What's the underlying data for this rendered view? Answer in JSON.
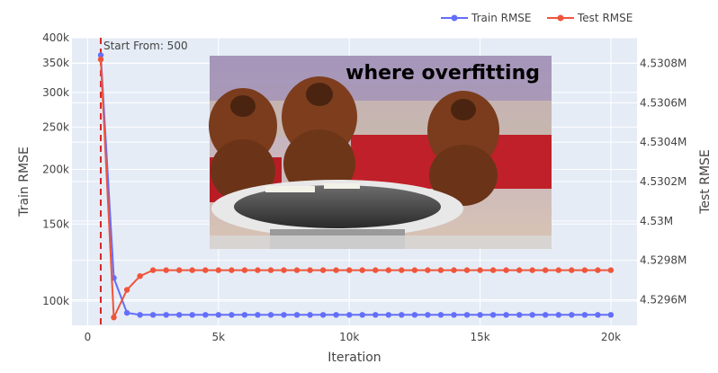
{
  "chart_data": {
    "type": "line",
    "xlabel": "Iteration",
    "ylabel": "Train RMSE",
    "y2label": "Test RMSE",
    "xlim": [
      -600,
      21000
    ],
    "ylim": [
      88000,
      400000
    ],
    "yscale": "log",
    "y2lim": [
      4.52947,
      4.53093
    ],
    "x_ticks": [
      0,
      5000,
      10000,
      15000,
      20000
    ],
    "x_tick_labels": [
      "0",
      "5k",
      "10k",
      "15k",
      "20k"
    ],
    "y_ticks": [
      100000,
      150000,
      200000,
      250000,
      300000,
      350000,
      400000
    ],
    "y_tick_labels": [
      "100k",
      "150k",
      "200k",
      "250k",
      "300k",
      "350k",
      "400k"
    ],
    "y2_ticks": [
      4.5296,
      4.5298,
      4.53,
      4.5302,
      4.5304,
      4.5306,
      4.5308
    ],
    "y2_tick_labels": [
      "4.5296M",
      "4.5298M",
      "4.53M",
      "4.5302M",
      "4.5304M",
      "4.5306M",
      "4.5308M"
    ],
    "x": [
      500,
      1000,
      1500,
      2000,
      2500,
      3000,
      3500,
      4000,
      4500,
      5000,
      5500,
      6000,
      6500,
      7000,
      7500,
      8000,
      8500,
      9000,
      9500,
      10000,
      10500,
      11000,
      11500,
      12000,
      12500,
      13000,
      13500,
      14000,
      14500,
      15000,
      15500,
      16000,
      16500,
      17000,
      17500,
      18000,
      18500,
      19000,
      19500,
      20000
    ],
    "series": [
      {
        "name": "Train RMSE",
        "color": "#636efa",
        "axis": "y",
        "values": [
          365000,
          113000,
          94000,
          93000,
          93000,
          93000,
          93000,
          93000,
          93000,
          93000,
          93000,
          93000,
          93000,
          93000,
          93000,
          93000,
          93000,
          93000,
          93000,
          93000,
          93000,
          93000,
          93000,
          93000,
          93000,
          93000,
          93000,
          93000,
          93000,
          93000,
          93000,
          93000,
          93000,
          93000,
          93000,
          93000,
          93000,
          93000,
          93000,
          93000
        ]
      },
      {
        "name": "Test RMSE",
        "color": "#ef553b",
        "axis": "y2",
        "values": [
          4.53082,
          4.52951,
          4.52965,
          4.52972,
          4.52975,
          4.52975,
          4.52975,
          4.52975,
          4.52975,
          4.52975,
          4.52975,
          4.52975,
          4.52975,
          4.52975,
          4.52975,
          4.52975,
          4.52975,
          4.52975,
          4.52975,
          4.52975,
          4.52975,
          4.52975,
          4.52975,
          4.52975,
          4.52975,
          4.52975,
          4.52975,
          4.52975,
          4.52975,
          4.52975,
          4.52975,
          4.52975,
          4.52975,
          4.52975,
          4.52975,
          4.52975,
          4.52975,
          4.52975,
          4.52975,
          4.52975
        ]
      }
    ],
    "vline": {
      "x": 500,
      "color": "#d62728",
      "label": "Start From: 500"
    },
    "overlay_image_caption": "where overfitting",
    "legend": "top-right",
    "grid": true
  }
}
